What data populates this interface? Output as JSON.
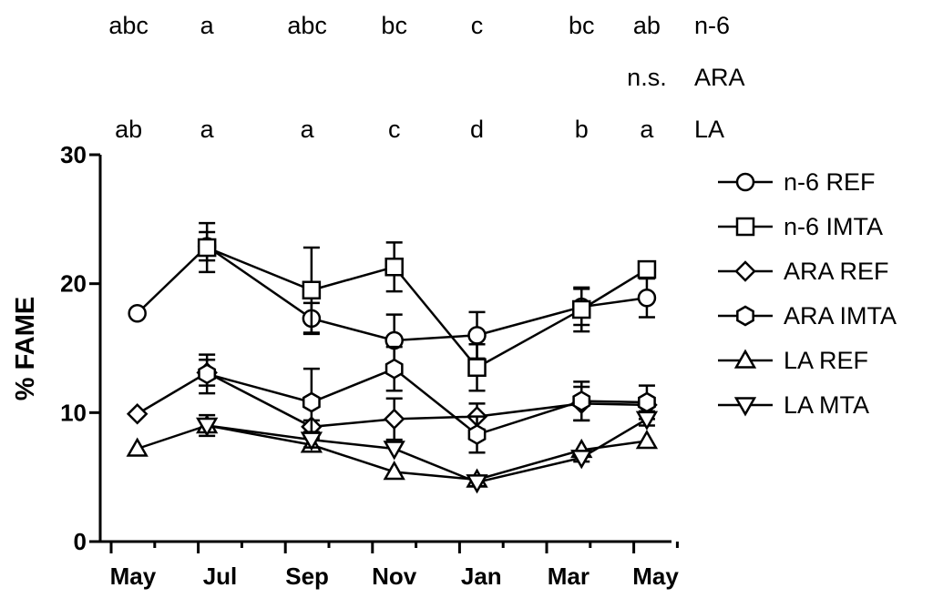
{
  "chart_data": {
    "type": "line",
    "ylabel": "% FAME",
    "xlabel": "",
    "title": "",
    "ylim": [
      0,
      30
    ],
    "y_ticks": [
      "0",
      "10",
      "20",
      "30"
    ],
    "x_month_labels": [
      "May",
      "Jul",
      "Sep",
      "Nov",
      "Jan",
      "Mar",
      "May"
    ],
    "x_month_index_range": [
      0,
      13
    ],
    "legend_position": "right",
    "significance_rows": [
      {
        "label": "n-6",
        "letters": [
          {
            "month_index": 0.4,
            "text": "abc"
          },
          {
            "month_index": 2.2,
            "text": "a"
          },
          {
            "month_index": 4.5,
            "text": "abc"
          },
          {
            "month_index": 6.5,
            "text": "bc"
          },
          {
            "month_index": 8.4,
            "text": "c"
          },
          {
            "month_index": 10.8,
            "text": "bc"
          },
          {
            "month_index": 12.3,
            "text": "ab"
          }
        ]
      },
      {
        "label": "ARA",
        "letters": [
          {
            "month_index": 12.3,
            "text": "n.s."
          }
        ]
      },
      {
        "label": "LA",
        "letters": [
          {
            "month_index": 0.4,
            "text": "ab"
          },
          {
            "month_index": 2.2,
            "text": "a"
          },
          {
            "month_index": 4.5,
            "text": "a"
          },
          {
            "month_index": 6.5,
            "text": "c"
          },
          {
            "month_index": 8.4,
            "text": "d"
          },
          {
            "month_index": 10.8,
            "text": "b"
          },
          {
            "month_index": 12.3,
            "text": "a"
          }
        ]
      }
    ],
    "series": [
      {
        "name": "n-6 REF",
        "marker": "circle",
        "x": [
          0.6,
          2.2,
          4.6,
          6.5,
          8.4,
          10.8,
          12.3
        ],
        "y": [
          17.7,
          22.9,
          17.3,
          15.6,
          16.0,
          18.2,
          18.9
        ],
        "err": [
          0,
          1.1,
          1.2,
          2.0,
          1.8,
          1.4,
          1.5
        ]
      },
      {
        "name": "n-6 IMTA",
        "marker": "square",
        "x": [
          2.2,
          4.6,
          6.5,
          8.4,
          10.8,
          12.3
        ],
        "y": [
          22.8,
          19.5,
          21.3,
          13.5,
          18.0,
          21.1
        ],
        "err": [
          1.9,
          3.3,
          1.9,
          1.8,
          1.7,
          0
        ]
      },
      {
        "name": "ARA REF",
        "marker": "diamond",
        "x": [
          0.6,
          2.2,
          4.6,
          6.5,
          8.4,
          10.8,
          12.3
        ],
        "y": [
          9.9,
          13.1,
          8.9,
          9.5,
          9.7,
          10.7,
          10.6
        ],
        "err": [
          0,
          1.0,
          0.5,
          1.6,
          1.0,
          1.3,
          0.5
        ]
      },
      {
        "name": "ARA IMTA",
        "marker": "hexagon",
        "x": [
          2.2,
          4.6,
          6.5,
          8.4,
          10.8,
          12.3
        ],
        "y": [
          13.0,
          10.8,
          13.4,
          8.3,
          10.9,
          10.8
        ],
        "err": [
          1.5,
          2.6,
          1.7,
          1.4,
          1.5,
          1.3
        ]
      },
      {
        "name": "LA REF",
        "marker": "triangle-up",
        "x": [
          0.6,
          2.2,
          4.6,
          6.5,
          8.4,
          10.8,
          12.3
        ],
        "y": [
          7.2,
          9.0,
          7.5,
          5.4,
          4.8,
          7.1,
          7.8
        ],
        "err": [
          0,
          0.5,
          0.5,
          0,
          0.3,
          0,
          0
        ]
      },
      {
        "name": "LA MTA",
        "marker": "triangle-down",
        "x": [
          2.2,
          4.6,
          6.5,
          8.4,
          10.8,
          12.3
        ],
        "y": [
          9.0,
          7.9,
          7.2,
          4.6,
          6.5,
          9.5
        ],
        "err": [
          0.8,
          0.6,
          0,
          0.3,
          0.3,
          0.5
        ]
      }
    ]
  }
}
